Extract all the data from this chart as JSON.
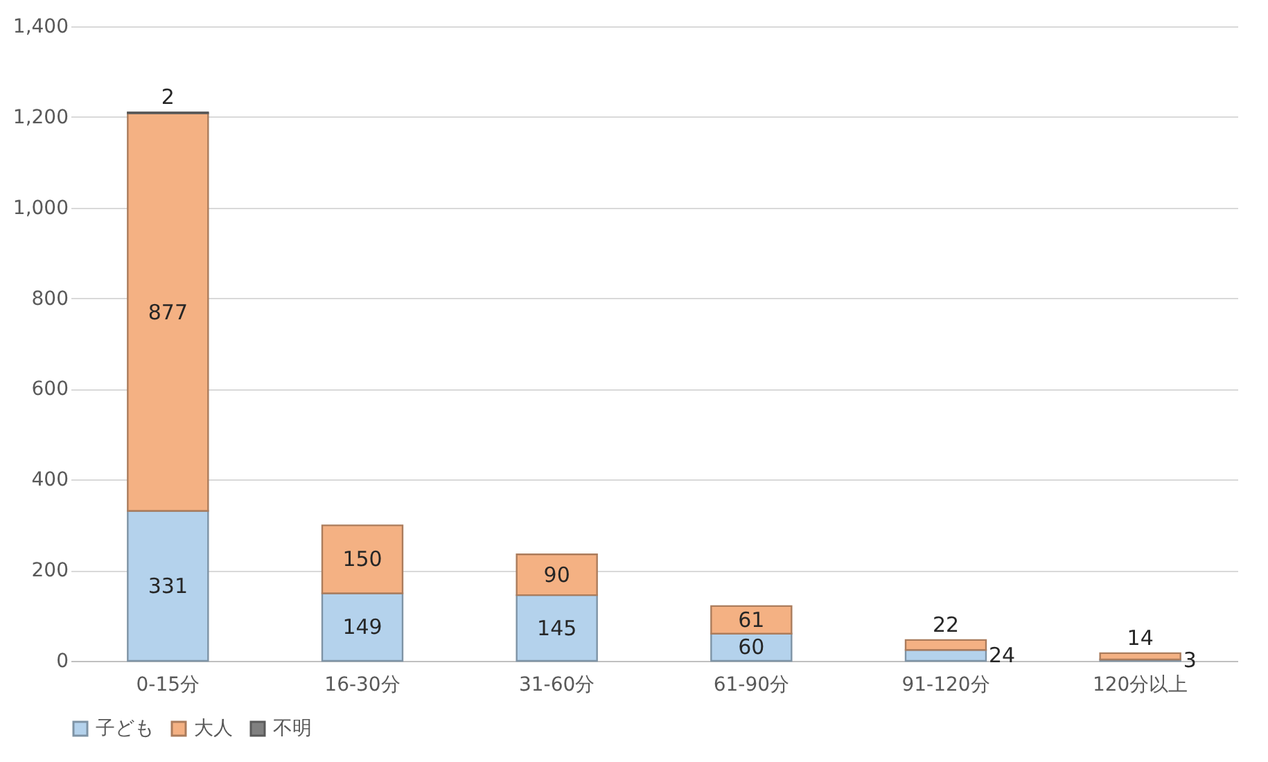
{
  "chart_data": {
    "type": "bar",
    "stacked": true,
    "categories": [
      "0-15分",
      "16-30分",
      "31-60分",
      "61-90分",
      "91-120分",
      "120分以上"
    ],
    "series": [
      {
        "name": "子ども",
        "color": "#b4d2ec",
        "values": [
          331,
          149,
          145,
          60,
          24,
          3
        ],
        "value_labels": [
          "331",
          "149",
          "145",
          "60",
          "24",
          "3"
        ]
      },
      {
        "name": "大人",
        "color": "#f4b183",
        "values": [
          877,
          150,
          90,
          61,
          22,
          14
        ],
        "value_labels": [
          "877",
          "150",
          "90",
          "61",
          "22",
          "14"
        ]
      },
      {
        "name": "不明",
        "color": "#808080",
        "values": [
          2,
          null,
          null,
          null,
          null,
          null
        ],
        "value_labels": [
          "2",
          null,
          null,
          null,
          null,
          null
        ]
      }
    ],
    "ylim": [
      0,
      1400
    ],
    "yticks": [
      0,
      200,
      400,
      600,
      800,
      {
        "value": 1000,
        "label": "1,000"
      },
      {
        "value": 1200,
        "label": "1,200"
      },
      {
        "value": 1400,
        "label": "1,400"
      }
    ],
    "grid": "y",
    "legend": "bottom"
  }
}
